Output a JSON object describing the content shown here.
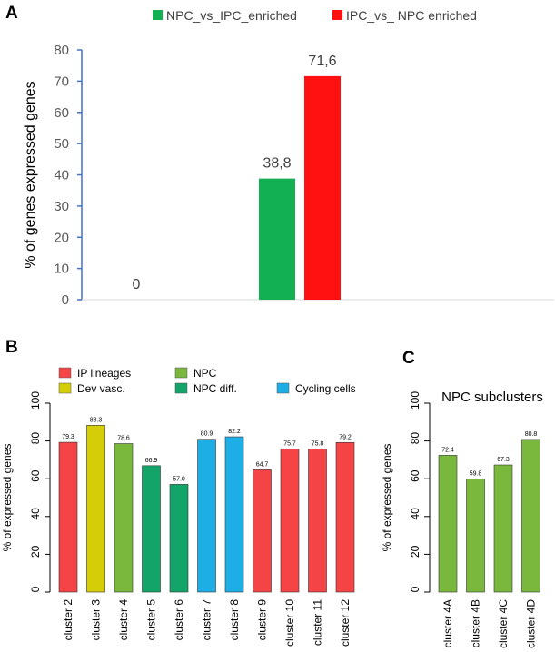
{
  "colors": {
    "npc_vs_ipc": "#12b052",
    "ipc_vs_npc": "#ff1111",
    "ip_lineages": "#f44446",
    "dev_vasc": "#d4cd07",
    "npc": "#79b73d",
    "npc_diff": "#12a468",
    "cycling": "#1eaee6",
    "axis_blue": "#4472c4"
  },
  "chart_data": [
    {
      "id": "A",
      "panel_label": "A",
      "type": "bar",
      "title": "",
      "ylabel": "% of genes expressed genes",
      "ylim": [
        0,
        80
      ],
      "yticks": [
        "0",
        "10",
        "20",
        "30",
        "40",
        "50",
        "60",
        "70",
        "80"
      ],
      "legend": [
        {
          "label": "NPC_vs_IPC_enriched",
          "color": "#12b052"
        },
        {
          "label": "IPC_vs_ NPC enriched",
          "color": "#ff1111"
        }
      ],
      "series": [
        {
          "name": "NPC_vs_IPC_enriched",
          "values": [
            0,
            38.8
          ],
          "labels": [
            "0",
            "38,8"
          ],
          "color": "#12b052"
        },
        {
          "name": "IPC_vs_ NPC enriched",
          "values": [
            null,
            71.6
          ],
          "labels": [
            "",
            "71,6"
          ],
          "color": "#ff1111"
        }
      ],
      "categories": [
        "",
        ""
      ]
    },
    {
      "id": "B",
      "panel_label": "B",
      "type": "bar",
      "title": "",
      "ylabel": "% of expressed genes",
      "ylim": [
        0,
        100
      ],
      "yticks": [
        "0",
        "20",
        "40",
        "60",
        "80",
        "100"
      ],
      "legend": [
        {
          "label": "IP lineages",
          "color": "#f44446"
        },
        {
          "label": "Dev vasc.",
          "color": "#d4cd07"
        },
        {
          "label": "NPC",
          "color": "#79b73d"
        },
        {
          "label": "NPC diff.",
          "color": "#12a468"
        },
        {
          "label": "Cycling cells",
          "color": "#1eaee6"
        }
      ],
      "categories": [
        "cluster 2",
        "cluster 3",
        "cluster 4",
        "cluster 5",
        "cluster 6",
        "cluster 7",
        "cluster 8",
        "cluster 9",
        "cluster 10",
        "cluster 11",
        "cluster 12"
      ],
      "values": [
        79.3,
        88.3,
        78.6,
        66.9,
        57.0,
        80.9,
        82.2,
        64.7,
        75.7,
        75.8,
        79.2
      ],
      "labels": [
        "79.3",
        "88.3",
        "78.6",
        "66.9",
        "57.0",
        "80.9",
        "82.2",
        "64.7",
        "75.7",
        "75.8",
        "79.2"
      ],
      "bar_colors": [
        "#f44446",
        "#d4cd07",
        "#79b73d",
        "#12a468",
        "#12a468",
        "#1eaee6",
        "#1eaee6",
        "#f44446",
        "#f44446",
        "#f44446",
        "#f44446"
      ]
    },
    {
      "id": "C",
      "panel_label": "C",
      "type": "bar",
      "title": "NPC subclusters",
      "ylabel": "% of expressed genes",
      "ylim": [
        0,
        100
      ],
      "yticks": [
        "0",
        "20",
        "40",
        "60",
        "80",
        "100"
      ],
      "categories": [
        "cluster 4A",
        "cluster 4B",
        "cluster 4C",
        "cluster 4D"
      ],
      "values": [
        72.4,
        59.8,
        67.3,
        80.8
      ],
      "labels": [
        "72.4",
        "59.8",
        "67.3",
        "80.8"
      ],
      "bar_colors": [
        "#79b73d",
        "#79b73d",
        "#79b73d",
        "#79b73d"
      ]
    }
  ]
}
